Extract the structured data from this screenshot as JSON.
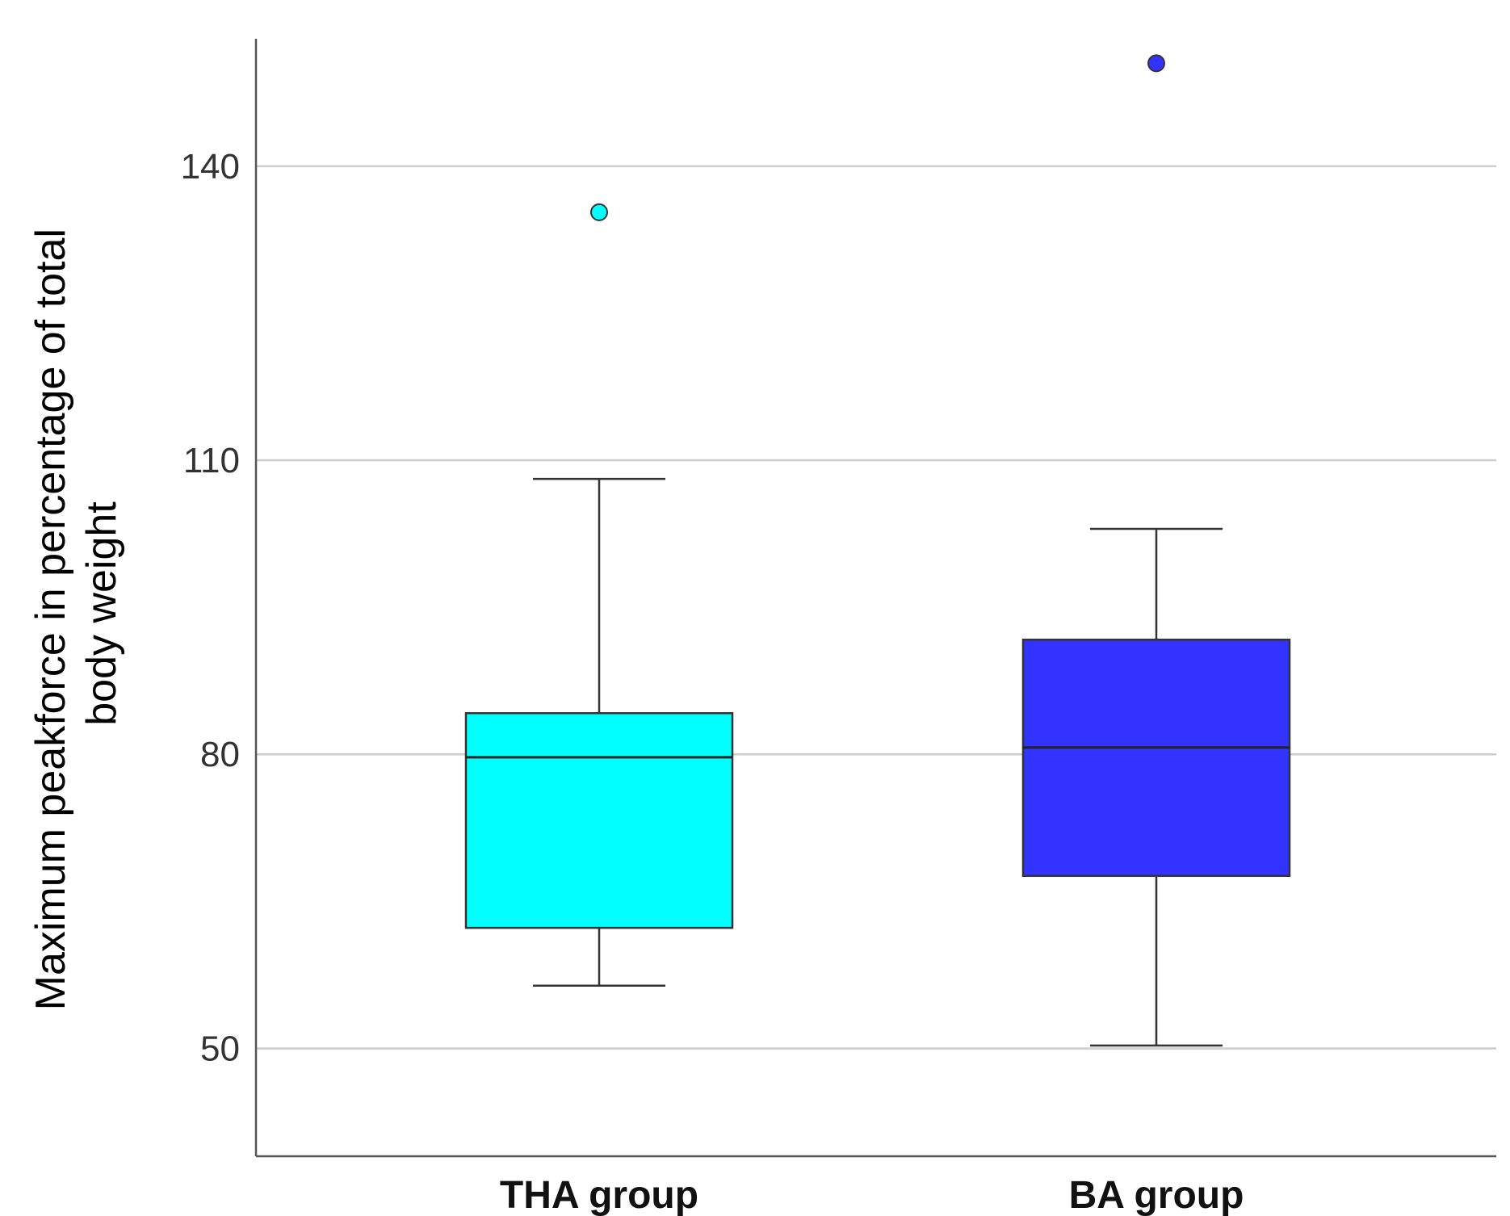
{
  "chart_data": {
    "type": "boxplot",
    "title": "",
    "xlabel": "",
    "ylabel_lines": [
      "Maximum peakforce in percentage of total",
      "body weight"
    ],
    "ylim": [
      39,
      153
    ],
    "yticks": [
      50,
      80,
      110,
      140
    ],
    "grid": true,
    "categories": [
      "THA group",
      "BA group"
    ],
    "boxes": [
      {
        "name": "THA group",
        "whisker_low": 56.4,
        "q1": 62.3,
        "median": 79.7,
        "q3": 84.2,
        "whisker_high": 108.1,
        "outliers": [
          135.3
        ],
        "color": "#00ffff"
      },
      {
        "name": "BA group",
        "whisker_low": 50.3,
        "q1": 67.6,
        "median": 80.7,
        "q3": 91.7,
        "whisker_high": 103.0,
        "outliers": [
          150.5
        ],
        "color": "#3333ff"
      }
    ]
  }
}
